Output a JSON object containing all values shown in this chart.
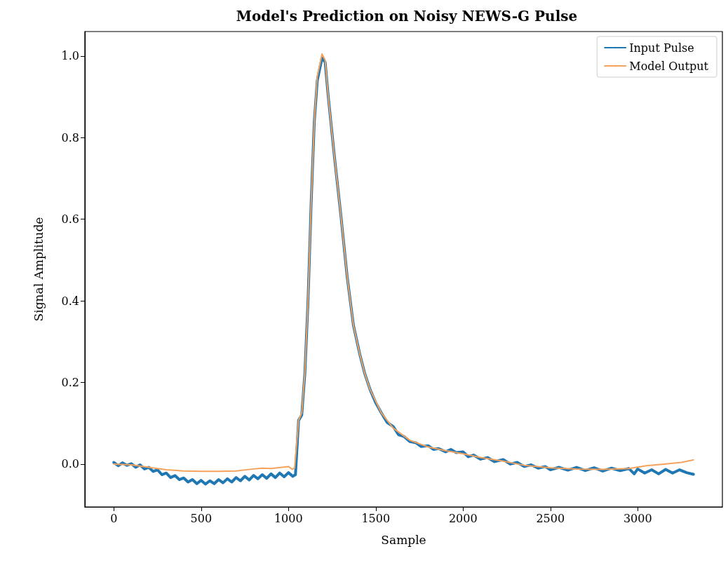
{
  "chart_data": {
    "type": "line",
    "title": "Model's Prediction on Noisy NEWS-G Pulse",
    "xlabel": "Sample",
    "ylabel": "Signal Amplitude",
    "xlim": [
      -166,
      3485
    ],
    "xticks": [
      0,
      500,
      1000,
      1500,
      2000,
      2500,
      3000
    ],
    "ylim": [
      -0.105,
      1.06
    ],
    "yticks": [
      {
        "value": 0,
        "label": "0.0"
      },
      {
        "value": 0.2,
        "label": "0.2"
      },
      {
        "value": 0.4,
        "label": "0.4"
      },
      {
        "value": 0.6,
        "label": "0.6"
      },
      {
        "value": 0.8,
        "label": "0.8"
      },
      {
        "value": 1,
        "label": "1.0"
      }
    ],
    "grid": false,
    "legend": "top right",
    "series": [
      {
        "name": "Input Pulse",
        "color": "#1f77b4",
        "x": [
          0,
          25,
          50,
          75,
          100,
          125,
          150,
          175,
          200,
          225,
          250,
          275,
          300,
          325,
          350,
          375,
          400,
          425,
          450,
          475,
          500,
          525,
          550,
          575,
          600,
          625,
          650,
          675,
          700,
          725,
          750,
          775,
          800,
          825,
          850,
          875,
          900,
          925,
          950,
          975,
          1000,
          1025,
          1040,
          1058,
          1076,
          1094,
          1112,
          1130,
          1148,
          1165,
          1192,
          1210,
          1228,
          1264,
          1300,
          1336,
          1372,
          1408,
          1436,
          1467,
          1500,
          1531,
          1565,
          1600,
          1630,
          1660,
          1696,
          1730,
          1760,
          1800,
          1830,
          1860,
          1900,
          1930,
          1961,
          2000,
          2030,
          2060,
          2100,
          2140,
          2180,
          2230,
          2270,
          2310,
          2350,
          2390,
          2430,
          2470,
          2500,
          2550,
          2600,
          2650,
          2700,
          2750,
          2800,
          2850,
          2900,
          2950,
          2980,
          3000,
          3040,
          3080,
          3120,
          3160,
          3200,
          3240,
          3280,
          3319
        ],
        "values": [
          0.004,
          -0.004,
          0.003,
          -0.003,
          0.001,
          -0.008,
          -0.002,
          -0.012,
          -0.008,
          -0.018,
          -0.014,
          -0.026,
          -0.022,
          -0.033,
          -0.028,
          -0.038,
          -0.034,
          -0.044,
          -0.038,
          -0.048,
          -0.04,
          -0.049,
          -0.041,
          -0.048,
          -0.038,
          -0.046,
          -0.036,
          -0.044,
          -0.033,
          -0.041,
          -0.03,
          -0.039,
          -0.028,
          -0.036,
          -0.026,
          -0.035,
          -0.024,
          -0.033,
          -0.022,
          -0.031,
          -0.021,
          -0.03,
          -0.026,
          0.107,
          0.12,
          0.223,
          0.4,
          0.64,
          0.84,
          0.94,
          0.995,
          0.985,
          0.9,
          0.75,
          0.61,
          0.46,
          0.34,
          0.27,
          0.223,
          0.183,
          0.15,
          0.126,
          0.102,
          0.092,
          0.072,
          0.068,
          0.055,
          0.052,
          0.043,
          0.045,
          0.036,
          0.038,
          0.03,
          0.036,
          0.028,
          0.03,
          0.018,
          0.022,
          0.012,
          0.016,
          0.006,
          0.011,
          0,
          0.004,
          -0.006,
          -0.002,
          -0.01,
          -0.006,
          -0.014,
          -0.008,
          -0.015,
          -0.008,
          -0.016,
          -0.009,
          -0.017,
          -0.01,
          -0.016,
          -0.011,
          -0.024,
          -0.012,
          -0.022,
          -0.014,
          -0.024,
          -0.013,
          -0.022,
          -0.014,
          -0.021,
          -0.025
        ]
      },
      {
        "name": "Model Output",
        "color": "#f5a25d",
        "x": [
          0,
          100,
          200,
          300,
          400,
          500,
          600,
          700,
          800,
          850,
          900,
          1000,
          1022,
          1035,
          1058,
          1076,
          1094,
          1112,
          1130,
          1148,
          1165,
          1192,
          1210,
          1228,
          1264,
          1300,
          1336,
          1372,
          1408,
          1436,
          1467,
          1531,
          1600,
          1696,
          1800,
          1900,
          2000,
          2100,
          2230,
          2350,
          2500,
          2650,
          2800,
          2950,
          3050,
          3150,
          3250,
          3319
        ],
        "values": [
          0,
          -0.002,
          -0.008,
          -0.014,
          -0.017,
          -0.018,
          -0.018,
          -0.017,
          -0.012,
          -0.01,
          -0.011,
          -0.006,
          -0.013,
          -0.01,
          0.107,
          0.125,
          0.225,
          0.4,
          0.64,
          0.84,
          0.95,
          1.005,
          0.99,
          0.9,
          0.75,
          0.61,
          0.46,
          0.34,
          0.27,
          0.223,
          0.183,
          0.126,
          0.088,
          0.058,
          0.042,
          0.033,
          0.025,
          0.016,
          0.007,
          -0.003,
          -0.009,
          -0.012,
          -0.013,
          -0.011,
          -0.004,
          0,
          0.004,
          0.01
        ]
      }
    ]
  }
}
